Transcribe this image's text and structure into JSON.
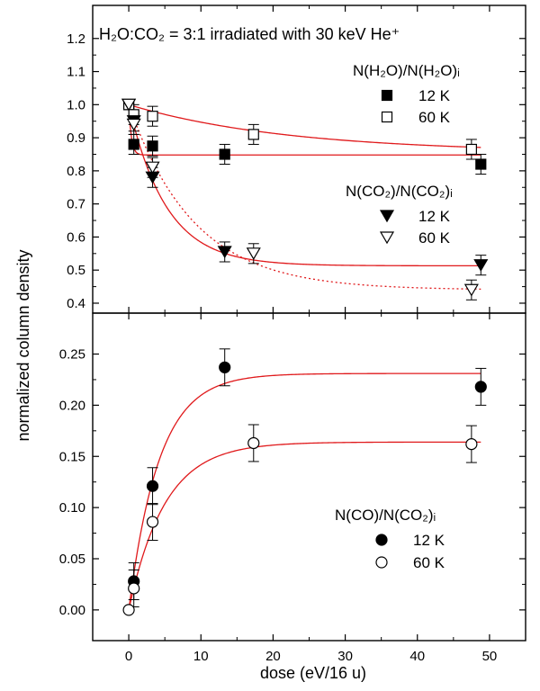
{
  "chart_data": [
    {
      "type": "scatter",
      "panel": "top",
      "title": "H₂O:CO₂ = 3:1 irradiated with 30 keV He⁺",
      "ylabel": "normalized column density",
      "xlim": [
        -5,
        55
      ],
      "ylim": [
        0.37,
        1.3
      ],
      "y_ticks": [
        "0.4",
        "0.5",
        "0.6",
        "0.7",
        "0.8",
        "0.9",
        "1.0",
        "1.1",
        "1.2"
      ],
      "grid": false,
      "legend_groups": [
        {
          "header": "N(H₂O)/N(H₂O)ᵢ",
          "entries": [
            {
              "symbol": "square-filled",
              "label": "12 K"
            },
            {
              "symbol": "square-open",
              "label": "60 K"
            }
          ]
        },
        {
          "header": "N(CO₂)/N(CO₂)ᵢ",
          "entries": [
            {
              "symbol": "triangle-down-filled",
              "label": "12 K"
            },
            {
              "symbol": "triangle-down-open",
              "label": "60 K"
            }
          ]
        }
      ],
      "series": [
        {
          "name": "N(H2O)/N(H2O)i 12 K",
          "marker": "square",
          "filled": true,
          "x": [
            0,
            0.7,
            3.3,
            13.3,
            48.8
          ],
          "y": [
            1.0,
            0.88,
            0.875,
            0.85,
            0.82
          ],
          "err": [
            0.01,
            0.03,
            0.03,
            0.03,
            0.03
          ]
        },
        {
          "name": "N(H2O)/N(H2O)i 60 K",
          "marker": "square",
          "filled": false,
          "x": [
            0,
            0.7,
            3.3,
            17.3,
            47.5
          ],
          "y": [
            1.0,
            0.97,
            0.965,
            0.91,
            0.865
          ],
          "err": [
            0.01,
            0.03,
            0.03,
            0.03,
            0.03
          ]
        },
        {
          "name": "N(CO2)/N(CO2)i 12 K",
          "marker": "triangle-down",
          "filled": true,
          "x": [
            0,
            0.7,
            3.3,
            13.3,
            48.8
          ],
          "y": [
            1.0,
            0.95,
            0.78,
            0.555,
            0.515
          ],
          "err": [
            0.01,
            0.03,
            0.03,
            0.03,
            0.03
          ]
        },
        {
          "name": "N(CO2)/N(CO2)i 60 K",
          "marker": "triangle-down",
          "filled": false,
          "x": [
            0,
            0.7,
            3.3,
            17.3,
            47.5
          ],
          "y": [
            1.0,
            0.94,
            0.81,
            0.55,
            0.44
          ],
          "err": [
            0.01,
            0.03,
            0.03,
            0.03,
            0.03
          ]
        }
      ],
      "fits": [
        {
          "fit_for": "H2O 12 K",
          "style": "solid",
          "formula": "0.848 + 0.152*exp(-x/0.35)"
        },
        {
          "fit_for": "H2O 60 K",
          "style": "solid",
          "formula": "0.855 + 0.145*exp(-x/22)"
        },
        {
          "fit_for": "CO2 12 K",
          "style": "solid",
          "formula": "0.513 + 0.487*exp(-x/5.2)"
        },
        {
          "fit_for": "CO2 60 K",
          "style": "dotted",
          "formula": "0.44 + 0.56*exp(-x/9.0)"
        }
      ]
    },
    {
      "type": "scatter",
      "panel": "bottom",
      "xlabel": "dose (eV/16 u)",
      "ylabel": "normalized column density",
      "xlim": [
        -5,
        55
      ],
      "ylim": [
        -0.03,
        0.29
      ],
      "x_ticks": [
        "0",
        "10",
        "20",
        "30",
        "40",
        "50"
      ],
      "y_ticks": [
        "0.00",
        "0.05",
        "0.10",
        "0.15",
        "0.20",
        "0.25"
      ],
      "grid": false,
      "legend_groups": [
        {
          "header": "N(CO)/N(CO₂)ᵢ",
          "entries": [
            {
              "symbol": "circle-filled",
              "label": "12 K"
            },
            {
              "symbol": "circle-open",
              "label": "60 K"
            }
          ]
        }
      ],
      "series": [
        {
          "name": "N(CO)/N(CO2)i 12 K",
          "marker": "circle",
          "filled": true,
          "x": [
            0.7,
            3.3,
            13.3,
            48.8
          ],
          "y": [
            0.028,
            0.121,
            0.237,
            0.218
          ],
          "err": [
            0.018,
            0.018,
            0.018,
            0.018
          ]
        },
        {
          "name": "N(CO)/N(CO2)i 60 K",
          "marker": "circle",
          "filled": false,
          "x": [
            0,
            0.7,
            3.3,
            17.3,
            47.5
          ],
          "y": [
            0.0,
            0.021,
            0.086,
            0.163,
            0.162
          ],
          "err": [
            0.0,
            0.018,
            0.018,
            0.018,
            0.018
          ]
        }
      ],
      "fits": [
        {
          "fit_for": "CO 12 K",
          "style": "solid",
          "formula": "0.231*(1-exp(-x/4.2))"
        },
        {
          "fit_for": "CO 60 K",
          "style": "solid",
          "formula": "0.164*(1-exp(-x/5.0))"
        }
      ]
    }
  ]
}
